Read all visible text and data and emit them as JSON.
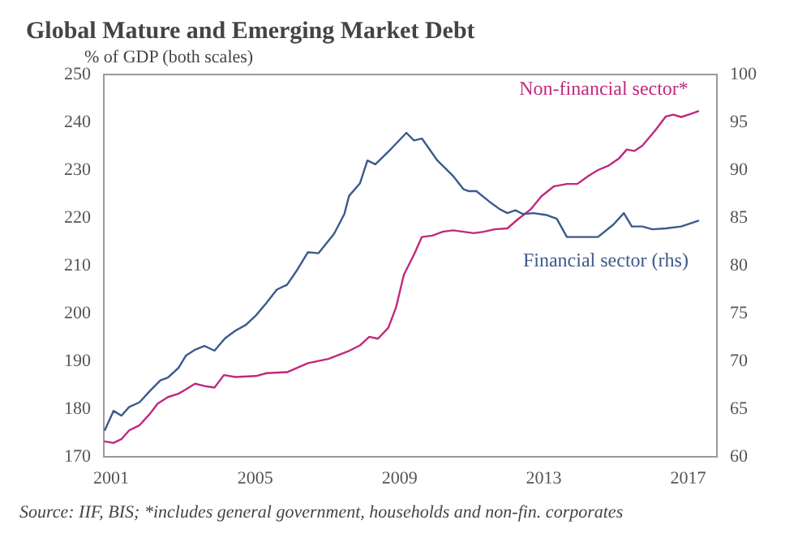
{
  "chart_data": {
    "type": "line",
    "title": "Global Mature and Emerging Market Debt",
    "subtitle": "% of GDP (both scales)",
    "annotations": [
      "Source: IIF, BIS; *includes general government, households and non-fin. corporates"
    ],
    "xlim": [
      2000.8,
      2017.8
    ],
    "xticks": [
      2001,
      2005,
      2009,
      2013,
      2017
    ],
    "ylim": [
      170,
      250
    ],
    "yticks": [
      170,
      180,
      190,
      200,
      210,
      220,
      230,
      240,
      250
    ],
    "y2lim": [
      60,
      100
    ],
    "y2ticks": [
      60,
      65,
      70,
      75,
      80,
      85,
      90,
      95,
      100
    ],
    "grid": false,
    "marker": "none",
    "line_style": "solid",
    "series": [
      {
        "name": "Non-financial sector*",
        "color": "#c0287f",
        "x": [
          2000.83,
          2001.07,
          2001.29,
          2001.5,
          2001.79,
          2002.08,
          2002.29,
          2002.58,
          2002.87,
          2003.08,
          2003.33,
          2003.59,
          2003.87,
          2004.13,
          2004.45,
          2005.02,
          2005.31,
          2005.88,
          2006.46,
          2007.03,
          2007.61,
          2007.9,
          2008.16,
          2008.4,
          2008.69,
          2008.9,
          2009.12,
          2009.4,
          2009.62,
          2009.91,
          2010.2,
          2010.48,
          2010.77,
          2011.06,
          2011.34,
          2011.63,
          2011.99,
          2012.28,
          2012.64,
          2012.93,
          2013.28,
          2013.64,
          2013.93,
          2014.22,
          2014.5,
          2014.79,
          2015.08,
          2015.3,
          2015.51,
          2015.73,
          2016.09,
          2016.38,
          2016.59,
          2016.81,
          2017.06,
          2017.28
        ],
        "values": [
          173.2,
          172.9,
          173.7,
          175.5,
          176.6,
          179.0,
          181.1,
          182.5,
          183.2,
          184.1,
          185.3,
          184.8,
          184.5,
          187.1,
          186.7,
          186.9,
          187.5,
          187.7,
          189.6,
          190.5,
          192.2,
          193.3,
          195.1,
          194.7,
          197.0,
          201.2,
          208.1,
          212.3,
          216.0,
          216.3,
          217.1,
          217.4,
          217.1,
          216.8,
          217.1,
          217.6,
          217.8,
          219.7,
          221.8,
          224.5,
          226.6,
          227.1,
          227.1,
          228.7,
          230.0,
          230.9,
          232.4,
          234.3,
          234.0,
          235.1,
          238.3,
          241.2,
          241.6,
          241.1,
          241.7,
          242.3
        ]
      },
      {
        "name": "Financial sector (rhs)",
        "color": "#3c5a8c",
        "axis": "y2",
        "x": [
          2000.83,
          2001.07,
          2001.29,
          2001.5,
          2001.79,
          2002.08,
          2002.37,
          2002.58,
          2002.87,
          2003.08,
          2003.33,
          2003.59,
          2003.87,
          2004.16,
          2004.45,
          2004.74,
          2005.02,
          2005.31,
          2005.6,
          2005.88,
          2006.17,
          2006.46,
          2006.75,
          2007.18,
          2007.47,
          2007.6,
          2007.9,
          2008.11,
          2008.33,
          2008.76,
          2009.19,
          2009.4,
          2009.62,
          2010.05,
          2010.48,
          2010.77,
          2010.91,
          2011.13,
          2011.49,
          2011.78,
          2011.99,
          2012.21,
          2012.42,
          2012.71,
          2013.07,
          2013.36,
          2013.64,
          2014.22,
          2014.5,
          2014.93,
          2015.22,
          2015.44,
          2015.73,
          2016.01,
          2016.38,
          2016.81,
          2017.28
        ],
        "values": [
          62.8,
          64.8,
          64.3,
          65.2,
          65.7,
          66.9,
          68.0,
          68.3,
          69.3,
          70.6,
          71.2,
          71.6,
          71.1,
          72.4,
          73.2,
          73.8,
          74.8,
          76.1,
          77.5,
          78.0,
          79.6,
          81.4,
          81.3,
          83.3,
          85.4,
          87.3,
          88.6,
          91.0,
          90.6,
          92.2,
          93.9,
          93.1,
          93.3,
          91.0,
          89.4,
          88.0,
          87.8,
          87.8,
          86.7,
          85.9,
          85.5,
          85.8,
          85.4,
          85.5,
          85.3,
          84.9,
          83.0,
          83.0,
          83.0,
          84.3,
          85.5,
          84.1,
          84.1,
          83.8,
          83.9,
          84.1,
          84.7
        ]
      }
    ]
  }
}
